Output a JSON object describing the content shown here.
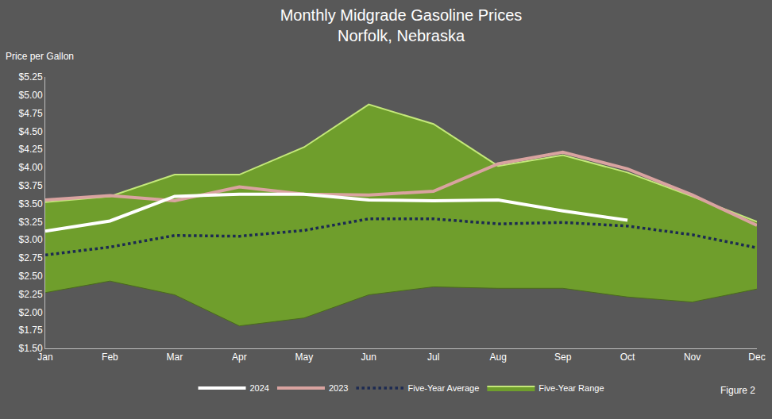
{
  "chart_data": {
    "type": "line",
    "title": "Monthly Midgrade Gasoline Prices",
    "subtitle": "Norfolk, Nebraska",
    "y_label": "Price per Gallon",
    "annotations": [
      "Figure 2"
    ],
    "categories": [
      "Jan",
      "Feb",
      "Mar",
      "Apr",
      "May",
      "Jun",
      "Jul",
      "Aug",
      "Sep",
      "Oct",
      "Nov",
      "Dec"
    ],
    "series": [
      {
        "name": "Five-Year Range",
        "type": "area",
        "color": "#6f9e2c",
        "low": [
          2.27,
          2.43,
          2.24,
          1.81,
          1.92,
          2.24,
          2.35,
          2.33,
          2.33,
          2.21,
          2.14,
          2.32
        ],
        "high": [
          3.52,
          3.6,
          3.9,
          3.9,
          4.28,
          4.87,
          4.6,
          4.02,
          4.17,
          3.93,
          3.6,
          3.25
        ]
      },
      {
        "name": "Five-Year Average",
        "type": "line",
        "color": "#1c2a52",
        "line_style": "dotted",
        "values": [
          2.79,
          2.9,
          3.06,
          3.05,
          3.13,
          3.29,
          3.29,
          3.22,
          3.24,
          3.19,
          3.07,
          2.89
        ]
      },
      {
        "name": "2023",
        "type": "line",
        "color": "#d9a3a0",
        "line_style": "solid",
        "values": [
          3.55,
          3.61,
          3.54,
          3.73,
          3.63,
          3.62,
          3.67,
          4.05,
          4.21,
          3.98,
          3.62,
          3.2
        ]
      },
      {
        "name": "2024",
        "type": "line",
        "color": "#ffffff",
        "line_style": "solid",
        "values": [
          3.12,
          3.26,
          3.6,
          3.63,
          3.63,
          3.55,
          3.54,
          3.55,
          3.4,
          3.27,
          null,
          null
        ]
      }
    ],
    "ylim": [
      1.5,
      5.25
    ],
    "yticks": [
      {
        "value": 1.5,
        "label": "$1.50"
      },
      {
        "value": 1.75,
        "label": "$1.75"
      },
      {
        "value": 2.0,
        "label": "$2.00"
      },
      {
        "value": 2.25,
        "label": "$2.25"
      },
      {
        "value": 2.5,
        "label": "$2.50"
      },
      {
        "value": 2.75,
        "label": "$2.75"
      },
      {
        "value": 3.0,
        "label": "$3.00"
      },
      {
        "value": 3.25,
        "label": "$3.25"
      },
      {
        "value": 3.5,
        "label": "$3.50"
      },
      {
        "value": 3.75,
        "label": "$3.75"
      },
      {
        "value": 4.0,
        "label": "$4.00"
      },
      {
        "value": 4.25,
        "label": "$4.25"
      },
      {
        "value": 4.5,
        "label": "$4.50"
      },
      {
        "value": 4.75,
        "label": "$4.75"
      },
      {
        "value": 5.0,
        "label": "$5.00"
      },
      {
        "value": 5.25,
        "label": "$5.25"
      }
    ],
    "grid": false,
    "legend": "bottom"
  }
}
